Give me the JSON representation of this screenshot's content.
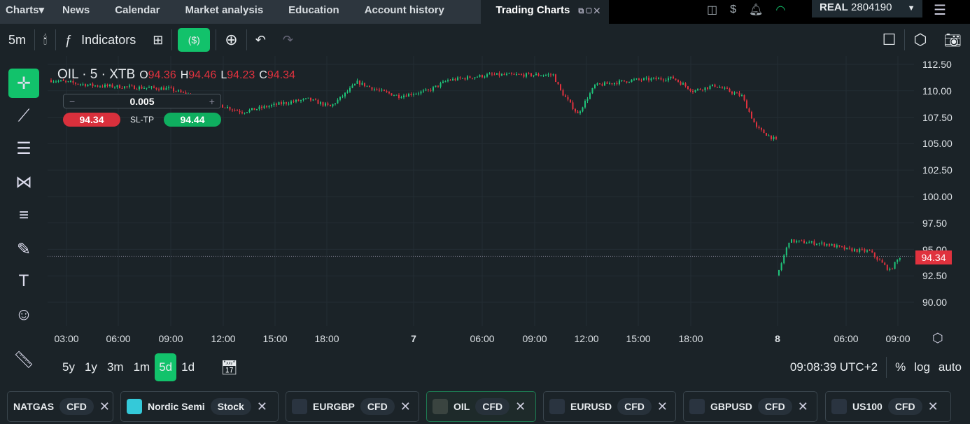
{
  "nav": {
    "tabs": [
      "Charts▾",
      "News",
      "Calendar",
      "Market analysis",
      "Education",
      "Account history"
    ],
    "active": "Trading Charts",
    "window_controls": "⧉▢✕"
  },
  "account": {
    "type": "REAL",
    "number": "2804190",
    "caret": "▼"
  },
  "toolbar": {
    "timeframe": "5m",
    "indicators": "Indicators"
  },
  "legend": {
    "symbol": "OIL · 5 · XTB",
    "o_label": "O",
    "o": "94.36",
    "h_label": "H",
    "h": "94.46",
    "l_label": "L",
    "l": "94.23",
    "c_label": "C",
    "c": "94.34"
  },
  "order": {
    "minus": "−",
    "qty": "0.005",
    "plus": "+",
    "sell": "94.34",
    "sltp": "SL-TP",
    "buy": "94.44"
  },
  "price_axis": [
    "112.50",
    "110.00",
    "107.50",
    "105.00",
    "102.50",
    "100.00",
    "97.50",
    "95.00",
    "92.50",
    "90.00"
  ],
  "last_price": "94.34",
  "time_axis": [
    "03:00",
    "06:00",
    "09:00",
    "12:00",
    "15:00",
    "18:00",
    "7",
    "06:00",
    "09:00",
    "12:00",
    "15:00",
    "18:00",
    "8",
    "06:00",
    "09:00"
  ],
  "ranges": [
    "5y",
    "1y",
    "3m",
    "1m",
    "5d",
    "1d"
  ],
  "selected_range": "5d",
  "clock": "09:08:39 UTC+2",
  "scale": {
    "pct": "%",
    "log": "log",
    "auto": "auto"
  },
  "instruments": [
    {
      "name": "NATGAS",
      "type": "CFD"
    },
    {
      "name": "Nordic Semi",
      "type": "Stock"
    },
    {
      "name": "EURGBP",
      "type": "CFD"
    },
    {
      "name": "OIL",
      "type": "CFD"
    },
    {
      "name": "EURUSD",
      "type": "CFD"
    },
    {
      "name": "GBPUSD",
      "type": "CFD"
    },
    {
      "name": "US100",
      "type": "CFD"
    }
  ],
  "colors": {
    "up": "#1fc47a",
    "down": "#e0323e",
    "accent": "#12c26b"
  },
  "chart_data": {
    "type": "candlestick",
    "symbol": "OIL",
    "interval": "5m",
    "ylim": [
      88.5,
      113
    ],
    "close_keypoints": [
      [
        0,
        111.0
      ],
      [
        17,
        110.5
      ],
      [
        48,
        110.2
      ],
      [
        71,
        108.5
      ],
      [
        78,
        108.0
      ],
      [
        94,
        108.8
      ],
      [
        105,
        109.2
      ],
      [
        114,
        108.5
      ],
      [
        119,
        109.5
      ],
      [
        125,
        110.8
      ],
      [
        134,
        110.0
      ],
      [
        142,
        109.5
      ],
      [
        154,
        110.0
      ],
      [
        162,
        111.0
      ],
      [
        179,
        111.5
      ],
      [
        205,
        111.5
      ],
      [
        208,
        110.0
      ],
      [
        215,
        107.8
      ],
      [
        222,
        110.5
      ],
      [
        237,
        111.0
      ],
      [
        254,
        111.2
      ],
      [
        262,
        110.0
      ],
      [
        271,
        110.5
      ],
      [
        282,
        109.5
      ],
      [
        288,
        106.5
      ],
      [
        296,
        105.3
      ],
      [
        297,
        93.0
      ],
      [
        301,
        95.8
      ],
      [
        316,
        95.5
      ],
      [
        324,
        95.0
      ],
      [
        333,
        94.8
      ],
      [
        341,
        93.0
      ],
      [
        345,
        94.3
      ]
    ]
  }
}
